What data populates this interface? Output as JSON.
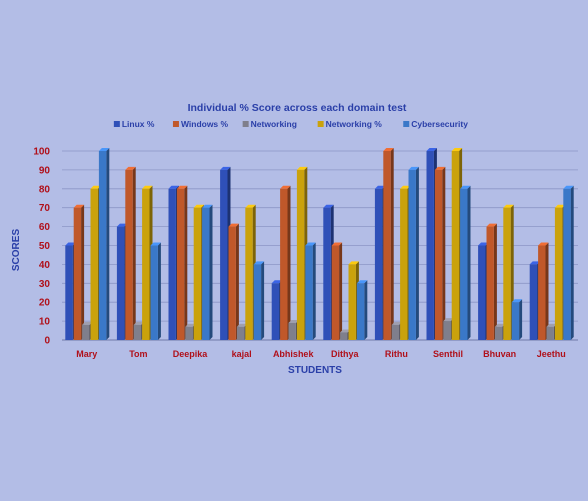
{
  "chart_data": {
    "type": "bar",
    "title": "Individual % Score across each domain test",
    "xlabel": "STUDENTS",
    "ylabel": "SCORES",
    "ylim": [
      0,
      100
    ],
    "yticks": [
      0,
      10,
      20,
      30,
      40,
      50,
      60,
      70,
      80,
      90,
      100
    ],
    "grid": true,
    "legend_position": "top",
    "categories": [
      "Mary",
      "Tom",
      "Deepika",
      "kajal",
      "Abhishek",
      "Dithya",
      "Rithu",
      "Senthil",
      "Bhuvan",
      "Jeethu"
    ],
    "series": [
      {
        "name": "Linux %",
        "color": "#2f50b8",
        "values": [
          50,
          60,
          80,
          90,
          30,
          70,
          80,
          100,
          50,
          40
        ]
      },
      {
        "name": "Windows %",
        "color": "#c0582a",
        "values": [
          70,
          90,
          80,
          60,
          80,
          50,
          100,
          90,
          60,
          50
        ]
      },
      {
        "name": "Networking",
        "color": "#7f7f8c",
        "values": [
          8,
          8,
          7,
          7,
          9,
          4,
          8,
          10,
          7,
          7
        ]
      },
      {
        "name": "Networking %",
        "color": "#caa20c",
        "values": [
          80,
          80,
          70,
          70,
          90,
          40,
          80,
          100,
          70,
          70
        ]
      },
      {
        "name": "Cybersecurity",
        "color": "#3a78c8",
        "values": [
          100,
          50,
          70,
          40,
          50,
          30,
          90,
          80,
          20,
          80
        ]
      }
    ],
    "colors": {
      "background": "#b3bde6",
      "title": "#2a3fa8",
      "axis_label": "#2a3fa8",
      "category_label": "#b0101a",
      "tick_label": "#b0101a",
      "grid": "#8c96c6"
    }
  }
}
